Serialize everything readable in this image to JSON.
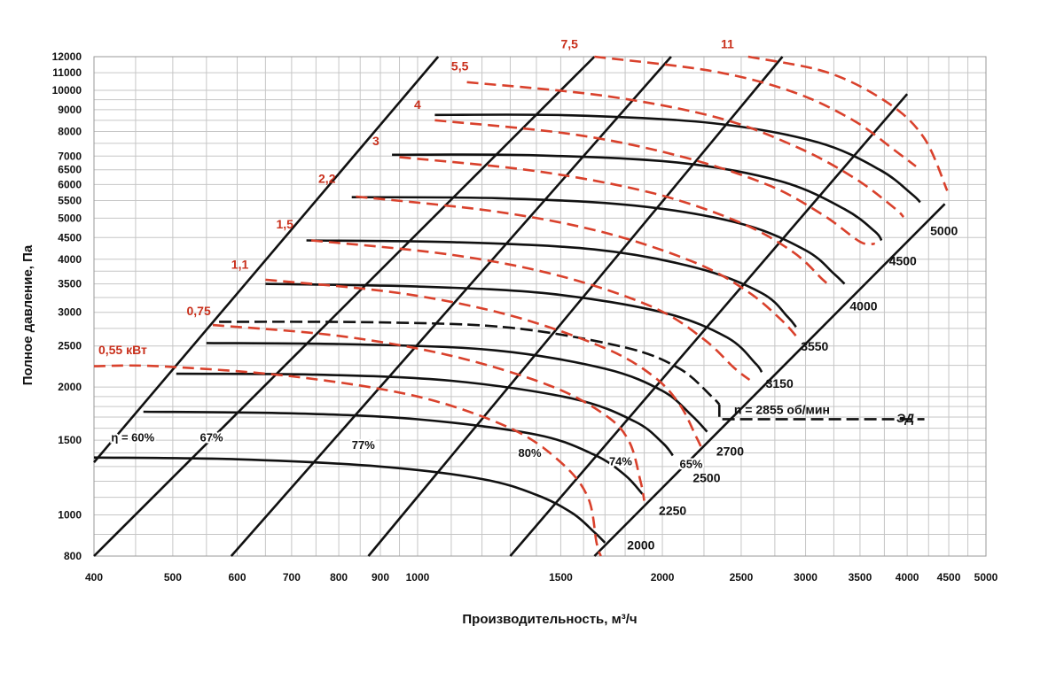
{
  "chart_data": {
    "type": "line",
    "title": "",
    "xlabel": "Производительность, м³/ч",
    "ylabel": "Полное давление, Па",
    "x_scale": "log",
    "y_scale": "log",
    "xlim": [
      400,
      5000
    ],
    "ylim": [
      800,
      12000
    ],
    "grid": true,
    "x_ticks": [
      {
        "value": 400,
        "label": "400"
      },
      {
        "value": 500,
        "label": "500"
      },
      {
        "value": 600,
        "label": "600"
      },
      {
        "value": 700,
        "label": "700"
      },
      {
        "value": 800,
        "label": "800"
      },
      {
        "value": 900,
        "label": "900"
      },
      {
        "value": 1000,
        "label": "1000"
      },
      {
        "value": 1500,
        "label": "1500"
      },
      {
        "value": 2000,
        "label": "2000"
      },
      {
        "value": 2500,
        "label": "2500"
      },
      {
        "value": 3000,
        "label": "3000"
      },
      {
        "value": 3500,
        "label": "3500"
      },
      {
        "value": 4000,
        "label": "4000"
      },
      {
        "value": 4500,
        "label": "4500"
      },
      {
        "value": 5000,
        "label": "5000"
      }
    ],
    "y_ticks": [
      {
        "value": 800,
        "label": "800"
      },
      {
        "value": 1000,
        "label": "1000"
      },
      {
        "value": 1500,
        "label": "1500"
      },
      {
        "value": 2000,
        "label": "2000"
      },
      {
        "value": 2500,
        "label": "2500"
      },
      {
        "value": 3000,
        "label": "3000"
      },
      {
        "value": 3500,
        "label": "3500"
      },
      {
        "value": 4000,
        "label": "4000"
      },
      {
        "value": 4500,
        "label": "4500"
      },
      {
        "value": 5000,
        "label": "5000"
      },
      {
        "value": 5500,
        "label": "5500"
      },
      {
        "value": 6000,
        "label": "6000"
      },
      {
        "value": 6500,
        "label": "6500"
      },
      {
        "value": 7000,
        "label": "7000"
      },
      {
        "value": 8000,
        "label": "8000"
      },
      {
        "value": 9000,
        "label": "9000"
      },
      {
        "value": 10000,
        "label": "10000"
      },
      {
        "value": 11000,
        "label": "11000"
      },
      {
        "value": 12000,
        "label": "12000"
      }
    ],
    "x_grid": [
      400,
      450,
      500,
      550,
      600,
      650,
      700,
      750,
      800,
      850,
      900,
      950,
      1000,
      1100,
      1200,
      1300,
      1400,
      1500,
      1600,
      1700,
      1800,
      1900,
      2000,
      2250,
      2500,
      2750,
      3000,
      3250,
      3500,
      3750,
      4000,
      4250,
      4500,
      4750,
      5000
    ],
    "y_grid": [
      800,
      900,
      1000,
      1100,
      1200,
      1300,
      1400,
      1500,
      1600,
      1700,
      1800,
      1900,
      2000,
      2250,
      2500,
      2750,
      3000,
      3250,
      3500,
      3750,
      4000,
      4500,
      5000,
      5500,
      6000,
      6500,
      7000,
      7500,
      8000,
      8500,
      9000,
      9500,
      10000,
      11000,
      12000
    ],
    "speed_curves": [
      {
        "label": "2000",
        "points": [
          [
            400,
            1365
          ],
          [
            600,
            1352
          ],
          [
            900,
            1300
          ],
          [
            1200,
            1215
          ],
          [
            1400,
            1115
          ],
          [
            1550,
            1010
          ],
          [
            1650,
            910
          ],
          [
            1700,
            860
          ]
        ],
        "label_at": [
          1810,
          830
        ]
      },
      {
        "label": "2250",
        "points": [
          [
            460,
            1750
          ],
          [
            700,
            1735
          ],
          [
            1000,
            1680
          ],
          [
            1400,
            1545
          ],
          [
            1650,
            1385
          ],
          [
            1800,
            1240
          ],
          [
            1890,
            1120
          ]
        ],
        "label_at": [
          1980,
          1000
        ]
      },
      {
        "label": "2500",
        "points": [
          [
            505,
            2150
          ],
          [
            750,
            2140
          ],
          [
            1100,
            2070
          ],
          [
            1550,
            1880
          ],
          [
            1850,
            1660
          ],
          [
            2000,
            1480
          ],
          [
            2060,
            1380
          ]
        ],
        "label_at": [
          2180,
          1195
        ]
      },
      {
        "label": "2700",
        "points": [
          [
            550,
            2540
          ],
          [
            850,
            2520
          ],
          [
            1250,
            2440
          ],
          [
            1700,
            2210
          ],
          [
            2000,
            1960
          ],
          [
            2170,
            1720
          ],
          [
            2270,
            1570
          ]
        ],
        "label_at": [
          2330,
          1380
        ]
      },
      {
        "label": "3150",
        "points": [
          [
            650,
            3500
          ],
          [
            1000,
            3450
          ],
          [
            1450,
            3320
          ],
          [
            2000,
            3000
          ],
          [
            2400,
            2620
          ],
          [
            2600,
            2280
          ],
          [
            2650,
            2170
          ]
        ],
        "label_at": [
          2680,
          1990
        ]
      },
      {
        "label": "3550",
        "points": [
          [
            730,
            4430
          ],
          [
            1100,
            4390
          ],
          [
            1650,
            4220
          ],
          [
            2200,
            3820
          ],
          [
            2650,
            3330
          ],
          [
            2850,
            2930
          ],
          [
            2920,
            2770
          ]
        ],
        "label_at": [
          2960,
          2440
        ]
      },
      {
        "label": "4000",
        "points": [
          [
            830,
            5600
          ],
          [
            1250,
            5570
          ],
          [
            1850,
            5350
          ],
          [
            2500,
            4850
          ],
          [
            3000,
            4200
          ],
          [
            3250,
            3700
          ],
          [
            3350,
            3500
          ]
        ],
        "label_at": [
          3400,
          3030
        ]
      },
      {
        "label": "4500",
        "points": [
          [
            930,
            7050
          ],
          [
            1400,
            7030
          ],
          [
            2100,
            6750
          ],
          [
            2800,
            6100
          ],
          [
            3350,
            5250
          ],
          [
            3650,
            4650
          ],
          [
            3720,
            4430
          ]
        ],
        "label_at": [
          3800,
          3870
        ]
      },
      {
        "label": "5000",
        "points": [
          [
            1050,
            8750
          ],
          [
            1550,
            8730
          ],
          [
            2300,
            8370
          ],
          [
            3100,
            7550
          ],
          [
            3700,
            6500
          ],
          [
            4050,
            5700
          ],
          [
            4150,
            5450
          ]
        ],
        "label_at": [
          4270,
          4560
        ]
      }
    ],
    "motor_curve": {
      "label": "n = 2855 об/мин",
      "points": [
        [
          570,
          2850
        ],
        [
          900,
          2840
        ],
        [
          1300,
          2760
        ],
        [
          1800,
          2480
        ],
        [
          2100,
          2210
        ],
        [
          2300,
          1900
        ],
        [
          2350,
          1820
        ]
      ],
      "leader_to": [
        4200,
        1680
      ],
      "label_at": [
        2450,
        1730
      ]
    },
    "motor_tag": {
      "label": "ЭД",
      "label_at": [
        3880,
        1650
      ]
    },
    "efficiency_lines": [
      {
        "label": "η = 60%",
        "points": [
          [
            400,
            1330
          ],
          [
            1060,
            12000
          ]
        ],
        "label_at": [
          420,
          1490
        ]
      },
      {
        "label": "67%",
        "points": [
          [
            400,
            800
          ],
          [
            1650,
            12000
          ]
        ],
        "label_at": [
          540,
          1490
        ]
      },
      {
        "label": "77%",
        "points": [
          [
            590,
            800
          ],
          [
            2050,
            12000
          ]
        ],
        "label_at": [
          830,
          1430
        ]
      },
      {
        "label": "80%",
        "points": [
          [
            870,
            800
          ],
          [
            2810,
            12000
          ]
        ],
        "label_at": [
          1330,
          1370
        ]
      },
      {
        "label": "74%",
        "points": [
          [
            1300,
            800
          ],
          [
            4000,
            9800
          ]
        ],
        "label_at": [
          1720,
          1310
        ]
      },
      {
        "label": "65%",
        "points": [
          [
            1650,
            800
          ],
          [
            4450,
            5400
          ]
        ],
        "label_at": [
          2100,
          1290
        ]
      }
    ],
    "power_curves": [
      {
        "label": "0,55 кВт",
        "points": [
          [
            400,
            2240
          ],
          [
            480,
            2240
          ],
          [
            700,
            2120
          ],
          [
            1000,
            1900
          ],
          [
            1300,
            1600
          ],
          [
            1500,
            1330
          ],
          [
            1620,
            1100
          ],
          [
            1660,
            860
          ],
          [
            1680,
            800
          ]
        ],
        "label_at": [
          405,
          2390
        ]
      },
      {
        "label": "0,75",
        "points": [
          [
            560,
            2800
          ],
          [
            800,
            2640
          ],
          [
            1100,
            2370
          ],
          [
            1450,
            2020
          ],
          [
            1700,
            1720
          ],
          [
            1820,
            1490
          ],
          [
            1880,
            1200
          ],
          [
            1900,
            1080
          ]
        ],
        "label_at": [
          520,
          2950
        ]
      },
      {
        "label": "1,1",
        "points": [
          [
            650,
            3580
          ],
          [
            950,
            3330
          ],
          [
            1300,
            2950
          ],
          [
            1700,
            2470
          ],
          [
            1950,
            2120
          ],
          [
            2100,
            1820
          ],
          [
            2200,
            1530
          ],
          [
            2230,
            1450
          ]
        ],
        "label_at": [
          590,
          3800
        ]
      },
      {
        "label": "1,5",
        "points": [
          [
            740,
            4430
          ],
          [
            1100,
            4100
          ],
          [
            1500,
            3650
          ],
          [
            1950,
            3080
          ],
          [
            2250,
            2590
          ],
          [
            2450,
            2220
          ],
          [
            2560,
            2080
          ]
        ],
        "label_at": [
          670,
          4730
        ]
      },
      {
        "label": "2,2",
        "points": [
          [
            840,
            5620
          ],
          [
            1250,
            5180
          ],
          [
            1700,
            4620
          ],
          [
            2200,
            3920
          ],
          [
            2550,
            3350
          ],
          [
            2800,
            2880
          ],
          [
            2930,
            2620
          ]
        ],
        "label_at": [
          755,
          6050
        ]
      },
      {
        "label": "3",
        "points": [
          [
            950,
            6960
          ],
          [
            1400,
            6450
          ],
          [
            1950,
            5720
          ],
          [
            2500,
            4870
          ],
          [
            2900,
            4150
          ],
          [
            3150,
            3580
          ],
          [
            3220,
            3460
          ]
        ],
        "label_at": [
          880,
          7420
        ]
      },
      {
        "label": "4",
        "points": [
          [
            1050,
            8500
          ],
          [
            1550,
            7880
          ],
          [
            2100,
            7000
          ],
          [
            2700,
            5980
          ],
          [
            3150,
            5090
          ],
          [
            3500,
            4400
          ],
          [
            3650,
            4350
          ]
        ],
        "label_at": [
          990,
          9050
        ]
      },
      {
        "label": "5,5",
        "points": [
          [
            1150,
            10450
          ],
          [
            1700,
            9700
          ],
          [
            2350,
            8600
          ],
          [
            2950,
            7300
          ],
          [
            3450,
            6200
          ],
          [
            3850,
            5300
          ],
          [
            3960,
            5030
          ]
        ],
        "label_at": [
          1100,
          11150
        ]
      },
      {
        "label": "7,5",
        "points": [
          [
            1650,
            12000
          ],
          [
            2300,
            11100
          ],
          [
            2900,
            9900
          ],
          [
            3450,
            8450
          ],
          [
            3850,
            7250
          ],
          [
            4100,
            6620
          ]
        ],
        "label_at": [
          1500,
          12550
        ]
      },
      {
        "label": "11",
        "points": [
          [
            2550,
            12000
          ],
          [
            3200,
            11000
          ],
          [
            3800,
            9300
          ],
          [
            4200,
            7700
          ],
          [
            4480,
            5800
          ]
        ],
        "label_at": [
          2360,
          12550
        ]
      }
    ]
  },
  "colors": {
    "grid": "#c6c6c6",
    "curve": "#111111",
    "power": "#d9412c",
    "power_text": "#c9301c",
    "text": "#111111"
  }
}
